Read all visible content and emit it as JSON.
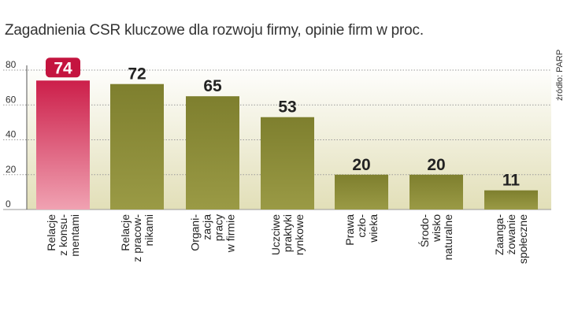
{
  "chart_data": {
    "type": "bar",
    "title": "Zagadnienia CSR kluczowe dla rozwoju firmy, opinie firm w proc.",
    "source": "źródło: PARP",
    "categories": [
      [
        "Relacje",
        "z konsu-",
        "mentami"
      ],
      [
        "Relacje",
        "z pracow-",
        "nikami"
      ],
      [
        "Organi-",
        "zacja",
        "pracy",
        "w firmie"
      ],
      [
        "Uczciwe",
        "praktyki",
        "rynkowe"
      ],
      [
        "Prawa",
        "czło-",
        "wieka"
      ],
      [
        "Środo-",
        "wisko",
        "naturalne"
      ],
      [
        "Zaanga-",
        "żowanie",
        "społeczne"
      ]
    ],
    "values": [
      74,
      72,
      65,
      53,
      20,
      20,
      11
    ],
    "value_labels": [
      "74",
      "72",
      "65",
      "53",
      "20",
      "20",
      "11"
    ],
    "highlight_index": 0,
    "ylim": [
      0,
      80
    ],
    "yticks": [
      0,
      20,
      40,
      60,
      80
    ],
    "ytick_labels": [
      "0",
      "20",
      "40",
      "60",
      "80"
    ],
    "grid": true,
    "colors": {
      "bar": "#7e7f2e",
      "bar_light": "#9a9a45",
      "highlight_top": "#cc1f4a",
      "highlight_bottom": "#f0a2b2",
      "highlight_label_bg": "#c4143f",
      "highlight_label_text": "#ffffff",
      "value_text": "#222222",
      "axis": "#555555",
      "grid": "#9a9a9a",
      "bg_top": "#ffffff",
      "bg_bottom": "#e2dfb8"
    }
  }
}
